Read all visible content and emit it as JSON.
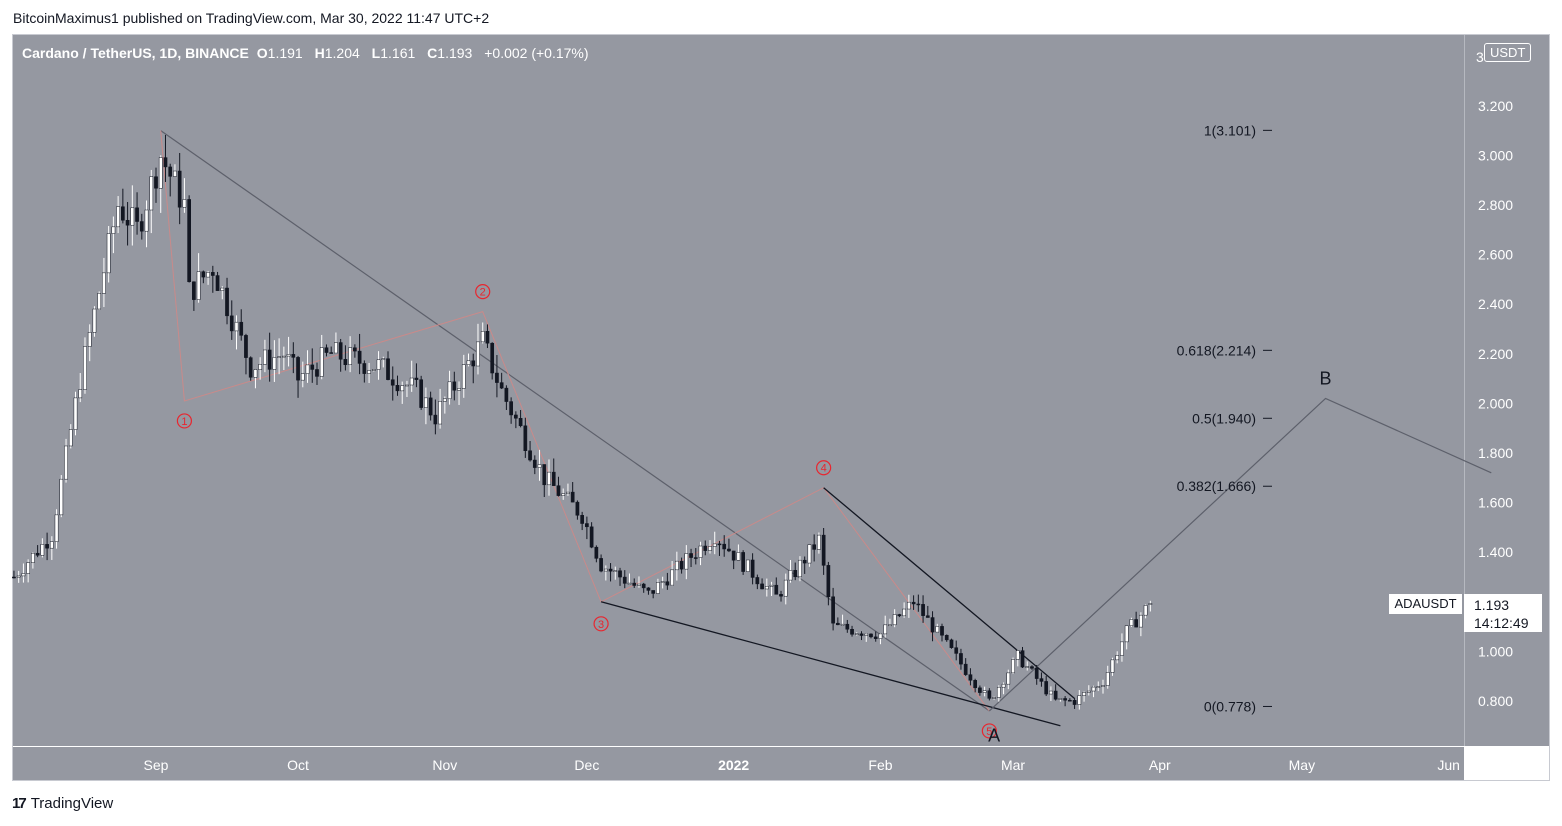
{
  "header": {
    "publisher_line": "BitcoinMaximus1 published on TradingView.com, Mar 30, 2022 11:47 UTC+2"
  },
  "legend": {
    "symbol": "Cardano / TetherUS, 1D, BINANCE",
    "o_label": "O",
    "o_val": "1.191",
    "h_label": "H",
    "h_val": "1.204",
    "l_label": "L",
    "l_val": "1.161",
    "c_label": "C",
    "c_val": "1.193",
    "change": "+0.002 (+0.17%)"
  },
  "price_axis": {
    "currency": "USDT",
    "top_partial": "3"
  },
  "last_price": {
    "ticker": "ADAUSDT",
    "price": "1.193",
    "countdown": "14:12:49"
  },
  "footer": {
    "brand": "TradingView",
    "logo_glyph": "17"
  },
  "colors": {
    "plot_bg": "#9598a1",
    "candle_up": "#ffffff",
    "candle_down": "#131722",
    "wave_line": "#c98a8a",
    "wave_label": "#e8262f",
    "trend_line": "#5d606b",
    "channel_line": "#131722",
    "projection_line": "#5d606b"
  },
  "chart_data": {
    "type": "candlestick",
    "title": "Cardano / TetherUS, 1D, BINANCE",
    "ylim": [
      0.62,
      3.26
    ],
    "y_ticks": [
      "0.800",
      "1.000",
      "1.200",
      "1.400",
      "1.600",
      "1.800",
      "2.000",
      "2.200",
      "2.400",
      "2.600",
      "2.800",
      "3.000",
      "3.200"
    ],
    "x_ticks": [
      {
        "label": "Sep",
        "date": "2021-09-01"
      },
      {
        "label": "Oct",
        "date": "2021-10-01"
      },
      {
        "label": "Nov",
        "date": "2021-11-01"
      },
      {
        "label": "Dec",
        "date": "2021-12-01"
      },
      {
        "label": "2022",
        "date": "2022-01-01",
        "bold": true
      },
      {
        "label": "Feb",
        "date": "2022-02-01"
      },
      {
        "label": "Mar",
        "date": "2022-03-01"
      },
      {
        "label": "Apr",
        "date": "2022-04-01"
      },
      {
        "label": "May",
        "date": "2022-05-01"
      },
      {
        "label": "Jun",
        "date": "2022-06-01",
        "clipped": true
      }
    ],
    "candle_anchors": [
      {
        "date": "2021-08-02",
        "close": 1.3
      },
      {
        "date": "2021-08-10",
        "close": 1.47
      },
      {
        "date": "2021-08-16",
        "close": 2.1
      },
      {
        "date": "2021-08-20",
        "close": 2.45
      },
      {
        "date": "2021-08-24",
        "close": 2.8
      },
      {
        "date": "2021-08-28",
        "close": 2.7
      },
      {
        "date": "2021-09-02",
        "close": 3.0
      },
      {
        "date": "2021-09-07",
        "close": 2.8
      },
      {
        "date": "2021-09-08",
        "close": 2.45
      },
      {
        "date": "2021-09-13",
        "close": 2.55
      },
      {
        "date": "2021-09-21",
        "close": 2.15
      },
      {
        "date": "2021-09-28",
        "close": 2.2
      },
      {
        "date": "2021-10-01",
        "close": 2.1
      },
      {
        "date": "2021-10-08",
        "close": 2.2
      },
      {
        "date": "2021-10-18",
        "close": 2.15
      },
      {
        "date": "2021-10-26",
        "close": 2.05
      },
      {
        "date": "2021-10-30",
        "close": 1.95
      },
      {
        "date": "2021-11-09",
        "close": 2.25
      },
      {
        "date": "2021-11-13",
        "close": 2.05
      },
      {
        "date": "2021-11-22",
        "close": 1.7
      },
      {
        "date": "2021-11-30",
        "close": 1.55
      },
      {
        "date": "2021-12-04",
        "close": 1.35
      },
      {
        "date": "2021-12-14",
        "close": 1.23
      },
      {
        "date": "2021-12-28",
        "close": 1.47
      },
      {
        "date": "2022-01-10",
        "close": 1.22
      },
      {
        "date": "2022-01-19",
        "close": 1.45
      },
      {
        "date": "2022-01-22",
        "close": 1.1
      },
      {
        "date": "2022-02-01",
        "close": 1.07
      },
      {
        "date": "2022-02-08",
        "close": 1.2
      },
      {
        "date": "2022-02-14",
        "close": 1.05
      },
      {
        "date": "2022-02-24",
        "close": 0.8
      },
      {
        "date": "2022-03-02",
        "close": 0.98
      },
      {
        "date": "2022-03-10",
        "close": 0.8
      },
      {
        "date": "2022-03-14",
        "close": 0.8
      },
      {
        "date": "2022-03-20",
        "close": 0.88
      },
      {
        "date": "2022-03-25",
        "close": 1.08
      },
      {
        "date": "2022-03-30",
        "close": 1.193
      }
    ],
    "last_candle": {
      "open": 1.191,
      "high": 1.204,
      "low": 1.161,
      "close": 1.193
    },
    "fibonacci": [
      {
        "level": "1",
        "value": 3.101,
        "label": "1(3.101)"
      },
      {
        "level": "0.618",
        "value": 2.214,
        "label": "0.618(2.214)"
      },
      {
        "level": "0.5",
        "value": 1.94,
        "label": "0.5(1.940)"
      },
      {
        "level": "0.382",
        "value": 1.666,
        "label": "0.382(1.666)"
      },
      {
        "level": "0",
        "value": 0.778,
        "label": "0(0.778)"
      }
    ],
    "wave_path": [
      {
        "date": "2021-09-02",
        "value": 3.1
      },
      {
        "date": "2021-09-07",
        "value": 2.01,
        "label": "1"
      },
      {
        "date": "2021-11-09",
        "value": 2.37,
        "label": "2"
      },
      {
        "date": "2021-12-04",
        "value": 1.2,
        "label": "3"
      },
      {
        "date": "2022-01-20",
        "value": 1.66,
        "label": "4"
      },
      {
        "date": "2022-02-24",
        "value": 0.76,
        "label": "5"
      }
    ],
    "descending_trendline": [
      {
        "date": "2021-09-02",
        "value": 3.1
      },
      {
        "date": "2022-02-24",
        "value": 0.76
      }
    ],
    "wedge_upper": [
      {
        "date": "2022-01-20",
        "value": 1.66
      },
      {
        "date": "2022-03-14",
        "value": 0.81
      }
    ],
    "wedge_lower": [
      {
        "date": "2021-12-04",
        "value": 1.2
      },
      {
        "date": "2022-03-11",
        "value": 0.7
      }
    ],
    "projection": [
      {
        "date": "2022-02-24",
        "value": 0.76
      },
      {
        "date": "2022-05-06",
        "value": 2.02,
        "label": "B"
      },
      {
        "date": "2022-06-10",
        "value": 1.72
      }
    ],
    "point_labels": [
      {
        "label": "A",
        "date": "2022-02-25",
        "value": 0.66
      }
    ]
  }
}
